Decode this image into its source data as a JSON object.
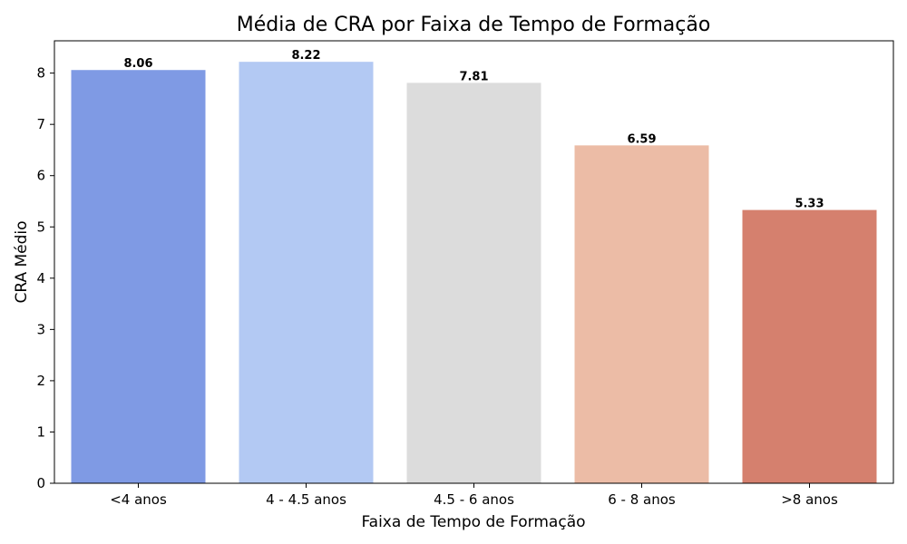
{
  "chart_data": {
    "type": "bar",
    "title": "Média de CRA por Faixa de Tempo de Formação",
    "xlabel": "Faixa de Tempo de Formação",
    "ylabel": "CRA Médio",
    "categories": [
      "<4 anos",
      "4 - 4.5 anos",
      "4.5 - 6 anos",
      "6 - 8 anos",
      ">8 anos"
    ],
    "values": [
      8.06,
      8.22,
      7.81,
      6.59,
      5.33
    ],
    "data_labels": [
      "8.06",
      "8.22",
      "7.81",
      "6.59",
      "5.33"
    ],
    "colors": [
      "#7f9ae4",
      "#b3c9f3",
      "#dcdcdc",
      "#ecbca6",
      "#d5806e"
    ],
    "ylim": [
      0,
      8.63
    ],
    "yticks": [
      0,
      1,
      2,
      3,
      4,
      5,
      6,
      7,
      8
    ],
    "grid": false,
    "legend": "none"
  }
}
